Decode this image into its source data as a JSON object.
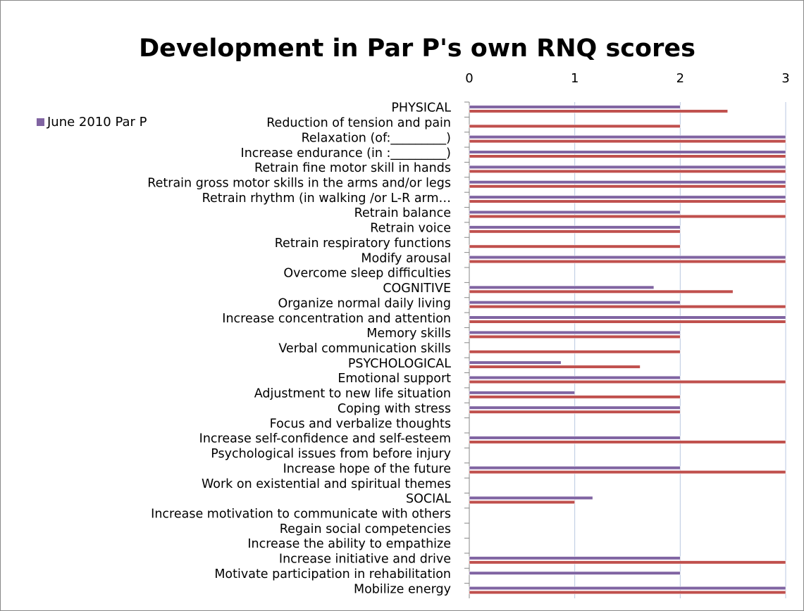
{
  "chart_data": {
    "type": "bar",
    "orientation": "horizontal",
    "title": "Development in Par P's own RNQ scores",
    "categories": [
      "PHYSICAL",
      "Reduction of tension and pain",
      "Relaxation (of:_________)",
      "Increase endurance (in :_________)",
      "Retrain fine motor skill in hands",
      "Retrain gross motor skills in the arms and/or legs",
      "Retrain rhythm (in walking /or  L-R arm…",
      "Retrain balance",
      "Retrain voice",
      "Retrain respiratory functions",
      "Modify arousal",
      "Overcome sleep difficulties",
      "COGNITIVE ",
      "Organize normal daily living",
      "Increase concentration and attention",
      "Memory skills",
      "Verbal communication skills",
      "PSYCHOLOGICAL",
      "Emotional support",
      "Adjustment to new life situation",
      "Coping with stress",
      "Focus and verbalize thoughts",
      "Increase self-confidence and self-esteem",
      "Psychological issues from before injury",
      "Increase hope of the future",
      "Work on existential and spiritual themes",
      "SOCIAL",
      "Increase motivation to communicate with others",
      "Regain social competencies",
      "Increase the ability to empathize",
      "Increase initiative and drive",
      "Motivate participation in rehabilitation",
      "Mobilize energy"
    ],
    "series": [
      {
        "name": "June 2010 Par P",
        "color": "#8064a2",
        "values": [
          2,
          null,
          3,
          3,
          3,
          3,
          3,
          2,
          2,
          null,
          3,
          null,
          1.75,
          2,
          3,
          2,
          null,
          0.87,
          2,
          1,
          2,
          null,
          2,
          null,
          2,
          null,
          1.17,
          null,
          null,
          null,
          2,
          2,
          3
        ]
      },
      {
        "color": "#c0504d",
        "values": [
          2.45,
          2,
          3,
          3,
          3,
          3,
          3,
          3,
          2,
          2,
          3,
          null,
          2.5,
          3,
          3,
          2,
          2,
          1.62,
          3,
          2,
          2,
          null,
          3,
          null,
          3,
          null,
          1,
          null,
          null,
          null,
          3,
          null,
          3
        ]
      }
    ],
    "xlim": [
      0,
      3
    ],
    "xticks": [
      0,
      1,
      2,
      3
    ],
    "grid": true
  }
}
